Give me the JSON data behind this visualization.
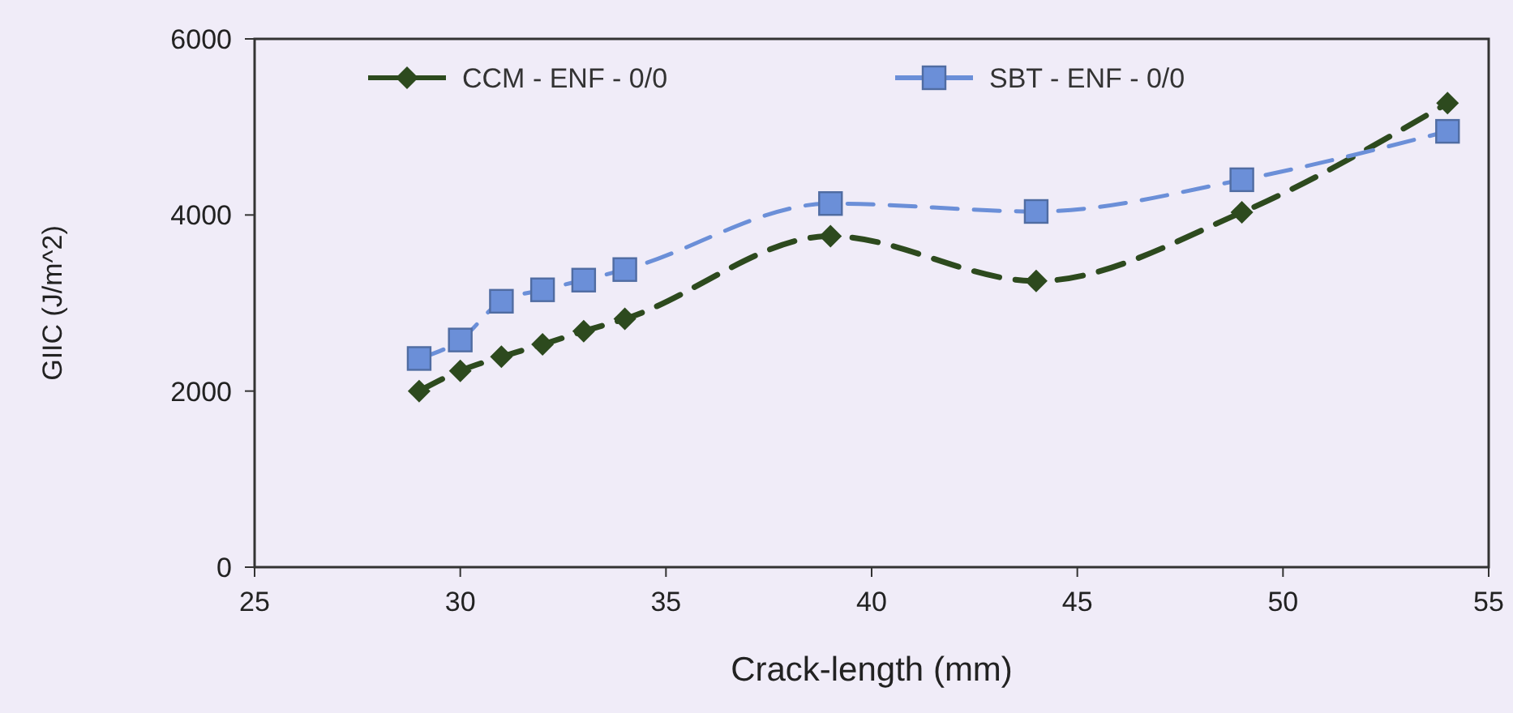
{
  "chart_data": {
    "type": "line",
    "xlabel": "Crack-length (mm)",
    "ylabel": "GIIC (J/m^2)",
    "xlim": [
      25,
      55
    ],
    "xticks": [
      25,
      30,
      35,
      40,
      45,
      50,
      55
    ],
    "ylim": [
      0,
      6000
    ],
    "yticks": [
      0,
      2000,
      4000,
      6000
    ],
    "grid": false,
    "legend": "top",
    "line_style": "dashed",
    "series": [
      {
        "name": "CCM - ENF - 0/0",
        "color": "#2d4a1e",
        "marker": "diamond",
        "x": [
          29,
          30,
          31,
          32,
          33,
          34,
          39,
          44,
          49,
          54
        ],
        "values": [
          2000,
          2230,
          2390,
          2530,
          2680,
          2820,
          3760,
          3250,
          4030,
          5270
        ]
      },
      {
        "name": "SBT - ENF - 0/0",
        "color": "#6b8fd8",
        "marker": "square",
        "x": [
          29,
          30,
          31,
          32,
          33,
          34,
          39,
          44,
          49,
          54
        ],
        "values": [
          2370,
          2580,
          3020,
          3150,
          3260,
          3380,
          4130,
          4040,
          4400,
          4950
        ]
      }
    ]
  }
}
